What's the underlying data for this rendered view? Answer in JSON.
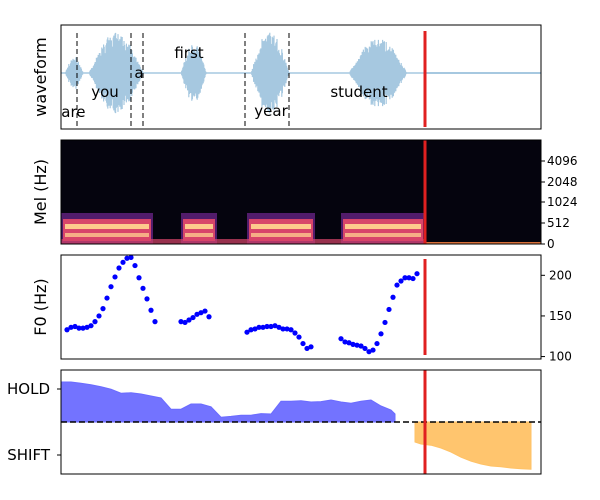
{
  "chart_data": [
    {
      "type": "line",
      "panel": "waveform",
      "ylabel": "waveform",
      "word_labels": [
        {
          "text": "are",
          "t": 0.62
        },
        {
          "text": "you",
          "t": 2.2
        },
        {
          "text": "a",
          "t": 3.9
        },
        {
          "text": "first",
          "t": 6.4
        },
        {
          "text": "year",
          "t": 10.5
        },
        {
          "text": "student",
          "t": 14.9
        }
      ],
      "word_boundaries": [
        0.8,
        3.5,
        4.1,
        9.2,
        11.4
      ],
      "current_time": 18.2,
      "colors": {
        "signal": "#a6c8e0",
        "boundary": "#000000",
        "cursor": "#e02020"
      }
    },
    {
      "type": "heatmap",
      "panel": "mel",
      "ylabel": "Mel (Hz)",
      "y_ticks": [
        "0",
        "512",
        "1024",
        "2048",
        "4096"
      ],
      "current_time": 18.2,
      "colors": {
        "background": "#05040e",
        "low": "#5b1f76",
        "mid": "#d8456a",
        "high": "#fec98d",
        "cursor": "#e02020"
      }
    },
    {
      "type": "scatter",
      "panel": "f0",
      "ylabel": "F0 (Hz)",
      "y_ticks": [
        100,
        150,
        200
      ],
      "ylim": [
        97,
        225
      ],
      "series": [
        {
          "x": [
            0.3,
            0.5,
            0.7,
            0.9,
            1.1,
            1.3,
            1.5,
            1.7,
            1.9,
            2.1,
            2.3,
            2.5,
            2.7,
            2.9,
            3.1,
            3.3,
            3.5,
            3.7,
            3.9,
            4.1,
            4.3
          ],
          "y": [
            133,
            136,
            137,
            135,
            135,
            136,
            138,
            143,
            150,
            159,
            172,
            186,
            198,
            209,
            216,
            221,
            222,
            212,
            197,
            184,
            171
          ]
        },
        {
          "x": [
            4.5,
            4.7
          ],
          "y": [
            157,
            143
          ]
        },
        {
          "x": [
            6.0,
            6.2,
            6.4,
            6.6,
            6.8,
            7.0,
            7.2,
            7.4
          ],
          "y": [
            143,
            142,
            145,
            148,
            152,
            154,
            156,
            149
          ]
        },
        {
          "x": [
            9.3,
            9.5,
            9.7,
            9.9,
            10.1,
            10.3,
            10.5,
            10.7,
            10.9,
            11.1,
            11.3,
            11.5,
            11.7,
            11.9,
            12.1,
            12.3,
            12.5
          ],
          "y": [
            130,
            133,
            134,
            136,
            136,
            137,
            137,
            138,
            136,
            134,
            134,
            133,
            129,
            124,
            116,
            110,
            112
          ]
        },
        {
          "x": [
            14.0,
            14.2,
            14.4,
            14.6,
            14.8,
            15.0,
            15.2,
            15.4,
            15.6,
            15.8,
            16.0,
            16.2,
            16.4,
            16.6,
            16.8,
            17.0,
            17.2,
            17.4,
            17.6,
            17.8
          ],
          "y": [
            122,
            118,
            117,
            115,
            114,
            113,
            110,
            106,
            108,
            116,
            128,
            142,
            158,
            173,
            188,
            193,
            197,
            197,
            196,
            202
          ]
        }
      ],
      "current_time": 18.2,
      "colors": {
        "points": "#0000ff",
        "cursor": "#e02020"
      }
    },
    {
      "type": "area",
      "panel": "turn",
      "y_ticks": [
        "HOLD",
        "SHIFT"
      ],
      "ylim": [
        -1.3,
        1.3
      ],
      "hold": {
        "x": [
          0,
          0.5,
          1,
          1.5,
          2,
          2.5,
          3,
          3.5,
          4,
          4.5,
          5,
          5.5,
          6,
          6.5,
          7,
          7.5,
          8,
          8.5,
          9,
          9.5,
          10,
          10.5,
          11,
          11.5,
          12,
          12.5,
          13,
          13.5,
          14,
          14.5,
          15,
          15.5,
          16,
          16.5,
          16.7
        ],
        "y": [
          1.0,
          1.0,
          0.97,
          0.93,
          0.88,
          0.82,
          0.72,
          0.73,
          0.7,
          0.65,
          0.6,
          0.32,
          0.32,
          0.45,
          0.45,
          0.38,
          0.12,
          0.14,
          0.17,
          0.17,
          0.21,
          0.2,
          0.52,
          0.52,
          0.53,
          0.5,
          0.51,
          0.55,
          0.5,
          0.47,
          0.52,
          0.55,
          0.4,
          0.3,
          0.2
        ]
      },
      "shift": {
        "x": [
          17.7,
          18,
          18.5,
          19,
          19.5,
          20,
          20.5,
          21,
          21.5,
          22,
          22.5,
          23,
          23.5
        ],
        "y": [
          -0.5,
          -0.55,
          -0.58,
          -0.65,
          -0.75,
          -0.88,
          -0.98,
          -1.05,
          -1.1,
          -1.12,
          -1.15,
          -1.17,
          -1.18
        ]
      },
      "current_time": 18.2,
      "colors": {
        "hold": "#6b6bff",
        "shift": "#ffc266",
        "cursor": "#e02020"
      }
    }
  ]
}
